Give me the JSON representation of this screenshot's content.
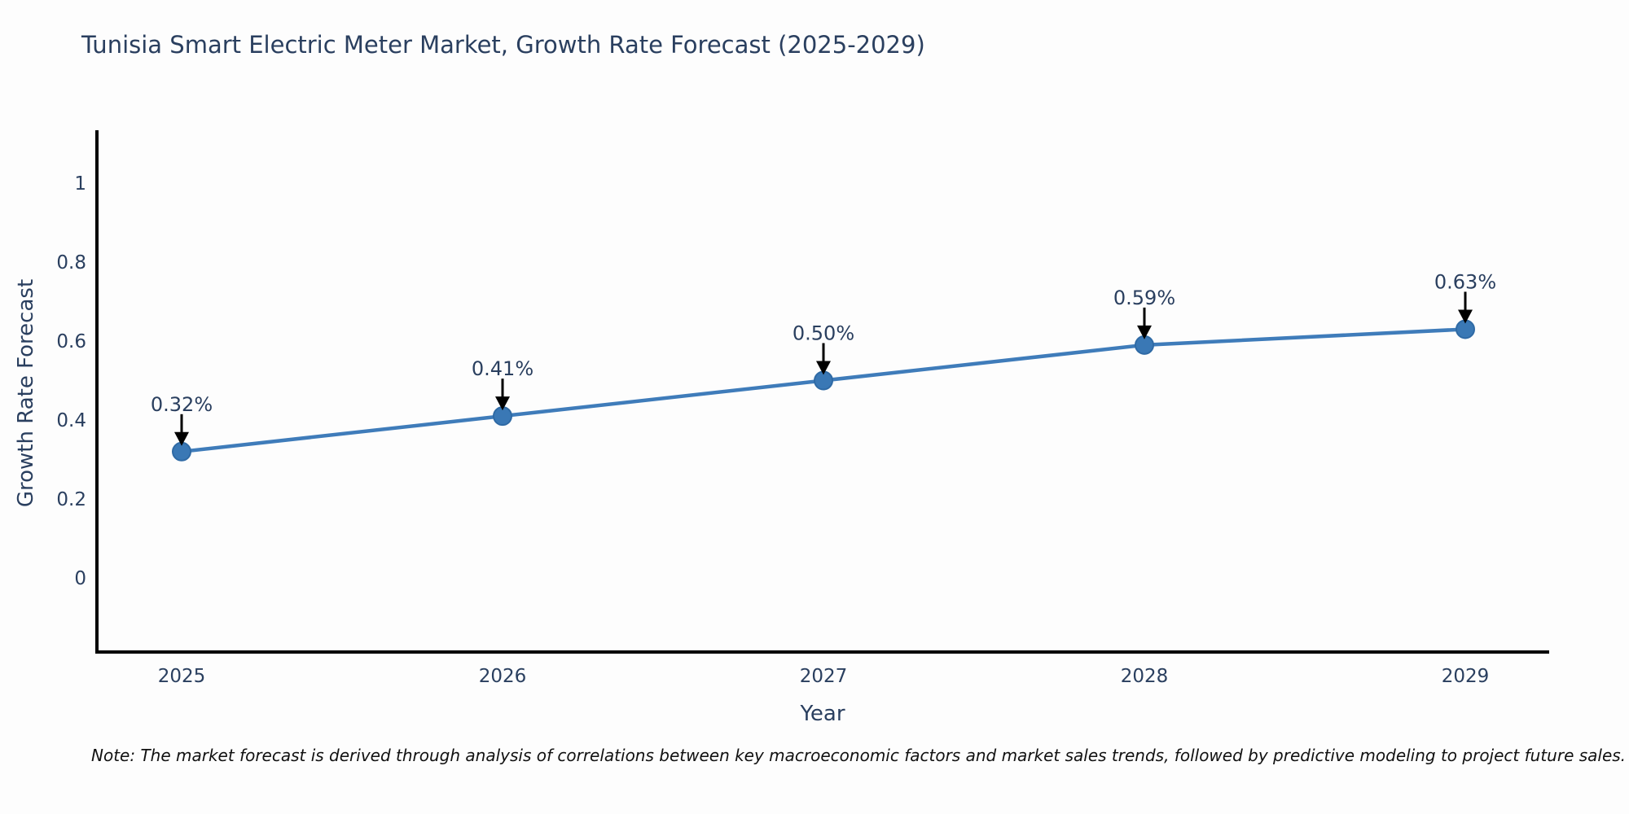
{
  "chart_data": {
    "type": "line",
    "title": "Tunisia Smart Electric Meter Market, Growth Rate Forecast (2025-2029)",
    "xlabel": "Year",
    "ylabel": "Growth Rate Forecast",
    "x": [
      2025,
      2026,
      2027,
      2028,
      2029
    ],
    "y": [
      0.32,
      0.41,
      0.5,
      0.59,
      0.63
    ],
    "point_labels": [
      "0.32%",
      "0.41%",
      "0.50%",
      "0.59%",
      "0.63%"
    ],
    "xtick_labels": [
      "2025",
      "2026",
      "2027",
      "2028",
      "2029"
    ],
    "ytick_values": [
      0,
      0.2,
      0.4,
      0.6,
      0.8,
      1
    ],
    "ytick_labels": [
      "0",
      "0.2",
      "0.4",
      "0.6",
      "0.8",
      "1"
    ],
    "ylim": [
      -0.19,
      1.13
    ],
    "grid": false,
    "legend_position": "none",
    "colors": {
      "line": "#3f7cba",
      "marker_fill": "#3a78b5",
      "marker_edge": "#2f6aa5",
      "axis_line": "#000000",
      "tick_text": "#2a3f5f",
      "annotation_text": "#2a3f5f",
      "annotation_arrow": "#000000"
    }
  },
  "footnote": "Note: The market forecast is derived through analysis of correlations between key macroeconomic factors and market sales trends, followed by predictive modeling to project future sales."
}
